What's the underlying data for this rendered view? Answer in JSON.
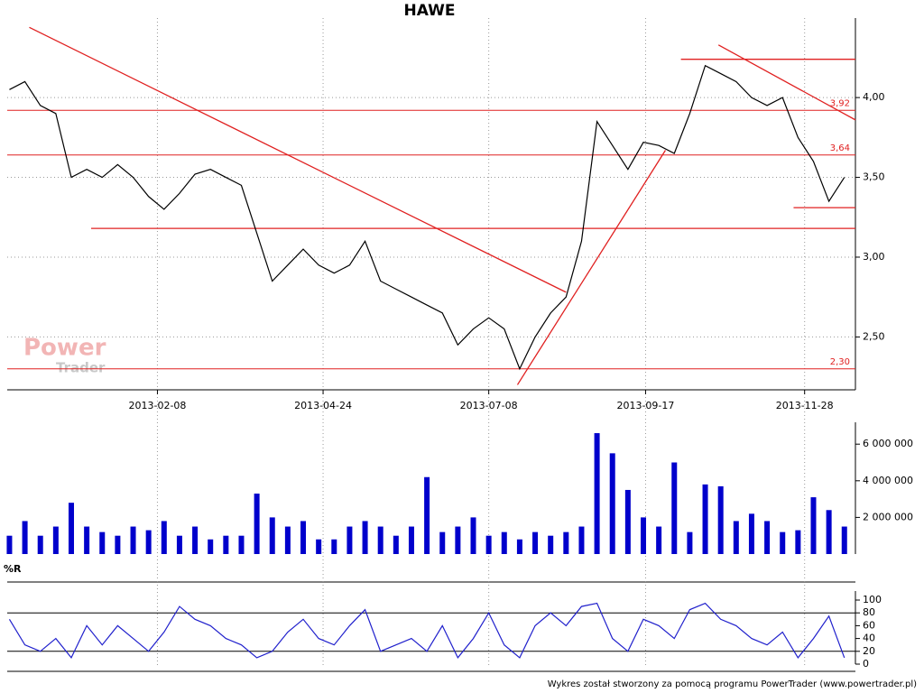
{
  "title": "HAWE",
  "watermark": [
    "Power",
    "Trader"
  ],
  "footer": "Wykres został stworzony za pomocą programu PowerTrader (www.powertrader.pl)",
  "chart_data": [
    {
      "type": "line",
      "color": "#000000",
      "x": [
        "2012-12-03",
        "2012-12-10",
        "2012-12-17",
        "2012-12-24",
        "2012-12-31",
        "2013-01-07",
        "2013-01-14",
        "2013-01-21",
        "2013-01-28",
        "2013-02-04",
        "2013-02-11",
        "2013-02-18",
        "2013-02-25",
        "2013-03-04",
        "2013-03-11",
        "2013-03-18",
        "2013-03-25",
        "2013-04-01",
        "2013-04-08",
        "2013-04-15",
        "2013-04-22",
        "2013-04-29",
        "2013-05-06",
        "2013-05-13",
        "2013-05-20",
        "2013-05-27",
        "2013-06-03",
        "2013-06-10",
        "2013-06-17",
        "2013-06-24",
        "2013-07-01",
        "2013-07-08",
        "2013-07-15",
        "2013-07-22",
        "2013-07-29",
        "2013-08-05",
        "2013-08-12",
        "2013-08-19",
        "2013-08-26",
        "2013-09-02",
        "2013-09-09",
        "2013-09-16",
        "2013-09-23",
        "2013-09-30",
        "2013-10-07",
        "2013-10-14",
        "2013-10-21",
        "2013-10-28",
        "2013-11-04",
        "2013-11-11",
        "2013-11-18",
        "2013-11-25",
        "2013-12-02",
        "2013-12-09",
        "2013-12-16"
      ],
      "values": [
        4.05,
        4.1,
        3.95,
        3.9,
        3.5,
        3.55,
        3.5,
        3.58,
        3.5,
        3.38,
        3.3,
        3.4,
        3.52,
        3.55,
        3.5,
        3.45,
        3.15,
        2.85,
        2.95,
        3.05,
        2.95,
        2.9,
        2.95,
        3.1,
        2.85,
        2.8,
        2.75,
        2.7,
        2.65,
        2.45,
        2.55,
        2.62,
        2.55,
        2.3,
        2.5,
        2.65,
        2.75,
        3.1,
        3.85,
        3.7,
        3.55,
        3.72,
        3.7,
        3.65,
        3.9,
        4.2,
        4.15,
        4.1,
        4.0,
        3.95,
        4.0,
        3.75,
        3.6,
        3.35,
        3.5
      ],
      "xlim": [
        "2012-12-02",
        "2013-12-21"
      ],
      "xticks": [
        "2013-02-08",
        "2013-04-24",
        "2013-07-08",
        "2013-09-17",
        "2013-11-28"
      ],
      "ylim": [
        2.18,
        4.47
      ],
      "yticks": [
        {
          "value": 2.5,
          "label": "2,50"
        },
        {
          "value": 3.0,
          "label": "3,00"
        },
        {
          "value": 3.5,
          "label": "3,50"
        },
        {
          "value": 4.0,
          "label": "4,00"
        }
      ],
      "grid": true,
      "levels": [
        {
          "value": 3.92,
          "label": "3,92"
        },
        {
          "value": 3.64,
          "label": "3,64"
        },
        {
          "value": 2.3,
          "label": "2,30"
        }
      ],
      "level_color": "#e02020",
      "lines": [
        {
          "x": [
            "2012-12-12",
            "2013-08-12"
          ],
          "y": [
            4.44,
            2.78
          ]
        },
        {
          "x": [
            "2013-07-21",
            "2013-09-26"
          ],
          "y": [
            2.2,
            3.67
          ]
        },
        {
          "x": [
            "2013-10-20",
            "2013-12-21"
          ],
          "y": [
            4.33,
            3.86
          ]
        },
        {
          "x": [
            "2013-01-09",
            "2013-12-21"
          ],
          "y": [
            3.18,
            3.18
          ]
        },
        {
          "x": [
            "2013-10-03",
            "2013-12-21"
          ],
          "y": [
            4.24,
            4.24
          ]
        },
        {
          "x": [
            "2013-11-23",
            "2013-12-21"
          ],
          "y": [
            3.31,
            3.31
          ]
        }
      ]
    },
    {
      "type": "bar",
      "color": "#0000cc",
      "x": [
        "2012-12-03",
        "2012-12-10",
        "2012-12-17",
        "2012-12-24",
        "2012-12-31",
        "2013-01-07",
        "2013-01-14",
        "2013-01-21",
        "2013-01-28",
        "2013-02-04",
        "2013-02-11",
        "2013-02-18",
        "2013-02-25",
        "2013-03-04",
        "2013-03-11",
        "2013-03-18",
        "2013-03-25",
        "2013-04-01",
        "2013-04-08",
        "2013-04-15",
        "2013-04-22",
        "2013-04-29",
        "2013-05-06",
        "2013-05-13",
        "2013-05-20",
        "2013-05-27",
        "2013-06-03",
        "2013-06-10",
        "2013-06-17",
        "2013-06-24",
        "2013-07-01",
        "2013-07-08",
        "2013-07-15",
        "2013-07-22",
        "2013-07-29",
        "2013-08-05",
        "2013-08-12",
        "2013-08-19",
        "2013-08-26",
        "2013-09-02",
        "2013-09-09",
        "2013-09-16",
        "2013-09-23",
        "2013-09-30",
        "2013-10-07",
        "2013-10-14",
        "2013-10-21",
        "2013-10-28",
        "2013-11-04",
        "2013-11-11",
        "2013-11-18",
        "2013-11-25",
        "2013-12-02",
        "2013-12-09",
        "2013-12-16"
      ],
      "values": [
        1000000,
        1800000,
        1000000,
        1500000,
        2800000,
        1500000,
        1200000,
        1000000,
        1500000,
        1300000,
        1800000,
        1000000,
        1500000,
        800000,
        1000000,
        1000000,
        3300000,
        2000000,
        1500000,
        1800000,
        800000,
        800000,
        1500000,
        1800000,
        1500000,
        1000000,
        1500000,
        4200000,
        1200000,
        1500000,
        2000000,
        1000000,
        1200000,
        800000,
        1200000,
        1000000,
        1200000,
        1500000,
        6600000,
        5500000,
        3500000,
        2000000,
        1500000,
        5000000,
        1200000,
        3800000,
        3700000,
        1800000,
        2200000,
        1800000,
        1200000,
        1300000,
        3100000,
        2400000,
        1500000
      ],
      "ylim": [
        0,
        6700000
      ],
      "yticks": [
        {
          "value": 2000000,
          "label": "2 000 000"
        },
        {
          "value": 4000000,
          "label": "4 000 000"
        },
        {
          "value": 6000000,
          "label": "6 000 000"
        }
      ]
    },
    {
      "type": "line",
      "title": "%R",
      "color": "#2020cc",
      "x": [
        "2012-12-03",
        "2012-12-10",
        "2012-12-17",
        "2012-12-24",
        "2012-12-31",
        "2013-01-07",
        "2013-01-14",
        "2013-01-21",
        "2013-01-28",
        "2013-02-04",
        "2013-02-11",
        "2013-02-18",
        "2013-02-25",
        "2013-03-04",
        "2013-03-11",
        "2013-03-18",
        "2013-03-25",
        "2013-04-01",
        "2013-04-08",
        "2013-04-15",
        "2013-04-22",
        "2013-04-29",
        "2013-05-06",
        "2013-05-13",
        "2013-05-20",
        "2013-05-27",
        "2013-06-03",
        "2013-06-10",
        "2013-06-17",
        "2013-06-24",
        "2013-07-01",
        "2013-07-08",
        "2013-07-15",
        "2013-07-22",
        "2013-07-29",
        "2013-08-05",
        "2013-08-12",
        "2013-08-19",
        "2013-08-26",
        "2013-09-02",
        "2013-09-09",
        "2013-09-16",
        "2013-09-23",
        "2013-09-30",
        "2013-10-07",
        "2013-10-14",
        "2013-10-21",
        "2013-10-28",
        "2013-11-04",
        "2013-11-11",
        "2013-11-18",
        "2013-11-25",
        "2013-12-02",
        "2013-12-09",
        "2013-12-16"
      ],
      "values": [
        70,
        30,
        20,
        40,
        10,
        60,
        30,
        60,
        40,
        20,
        50,
        90,
        70,
        60,
        40,
        30,
        10,
        20,
        50,
        70,
        40,
        30,
        60,
        85,
        20,
        30,
        40,
        20,
        60,
        10,
        40,
        80,
        30,
        10,
        60,
        80,
        60,
        90,
        95,
        40,
        20,
        70,
        60,
        40,
        85,
        95,
        70,
        60,
        40,
        30,
        50,
        10,
        40,
        75,
        10
      ],
      "ylim": [
        0,
        100
      ],
      "yticks": [
        0,
        20,
        40,
        60,
        80,
        100
      ],
      "levels": [
        20,
        80
      ]
    }
  ]
}
